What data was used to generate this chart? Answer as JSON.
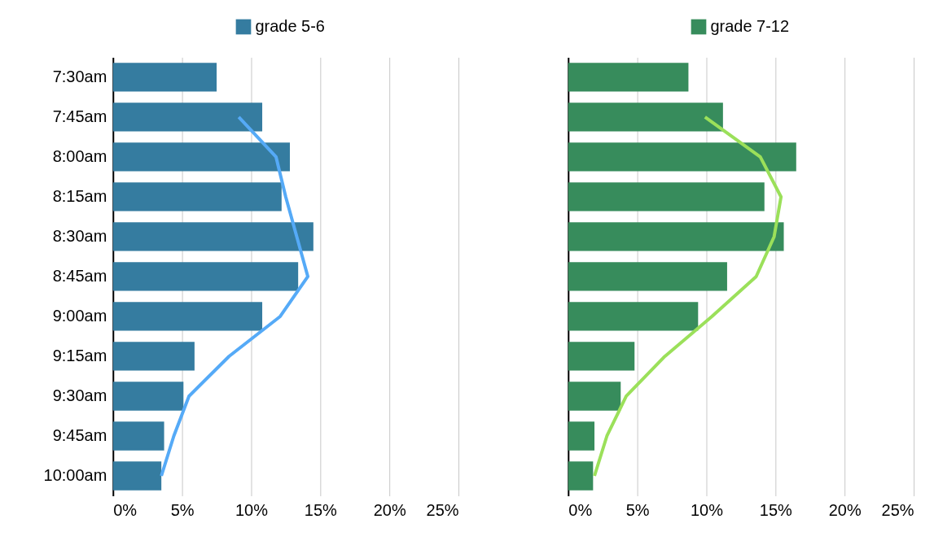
{
  "chart_data": [
    {
      "type": "bar",
      "orientation": "horizontal",
      "categories": [
        "7:30am",
        "7:45am",
        "8:00am",
        "8:15am",
        "8:30am",
        "8:45am",
        "9:00am",
        "9:15am",
        "9:30am",
        "9:45am",
        "10:00am"
      ],
      "xlim": [
        0,
        25
      ],
      "xticks": [
        {
          "value": 0,
          "label": "0%"
        },
        {
          "value": 5,
          "label": "5%"
        },
        {
          "value": 10,
          "label": "10%"
        },
        {
          "value": 15,
          "label": "15%"
        },
        {
          "value": 20,
          "label": "20%"
        },
        {
          "value": 25,
          "label": "25%"
        }
      ],
      "grid": "x",
      "legend": "top",
      "series": [
        {
          "name": "grade 5-6",
          "color": "#357ca0",
          "values": [
            7.5,
            10.8,
            12.8,
            12.2,
            14.5,
            13.4,
            10.8,
            5.9,
            5.1,
            3.7,
            3.5
          ]
        },
        {
          "type": "line",
          "color": "#55aaf7",
          "values": [
            null,
            9.1,
            11.8,
            12.5,
            13.3,
            14.1,
            12.1,
            8.4,
            5.5,
            4.4,
            3.5
          ]
        }
      ]
    },
    {
      "type": "bar",
      "orientation": "horizontal",
      "categories": [
        null,
        null,
        null,
        null,
        null,
        null,
        null,
        null,
        null,
        null,
        null
      ],
      "xlim": [
        0,
        25
      ],
      "xticks": [
        {
          "value": 0,
          "label": "0%"
        },
        {
          "value": 5,
          "label": "5%"
        },
        {
          "value": 10,
          "label": "10%"
        },
        {
          "value": 15,
          "label": "15%"
        },
        {
          "value": 20,
          "label": "20%"
        },
        {
          "value": 25,
          "label": "25%"
        }
      ],
      "grid": "x",
      "legend": "top",
      "series": [
        {
          "name": "grade 7-12",
          "color": "#378c5c",
          "values": [
            8.7,
            11.2,
            16.5,
            14.2,
            15.6,
            11.5,
            9.4,
            4.8,
            3.8,
            1.9,
            1.8
          ]
        },
        {
          "type": "line",
          "color": "#9be05a",
          "values": [
            null,
            9.9,
            13.9,
            15.4,
            14.9,
            13.6,
            10.4,
            7.0,
            4.2,
            2.8,
            1.9
          ]
        }
      ]
    }
  ]
}
